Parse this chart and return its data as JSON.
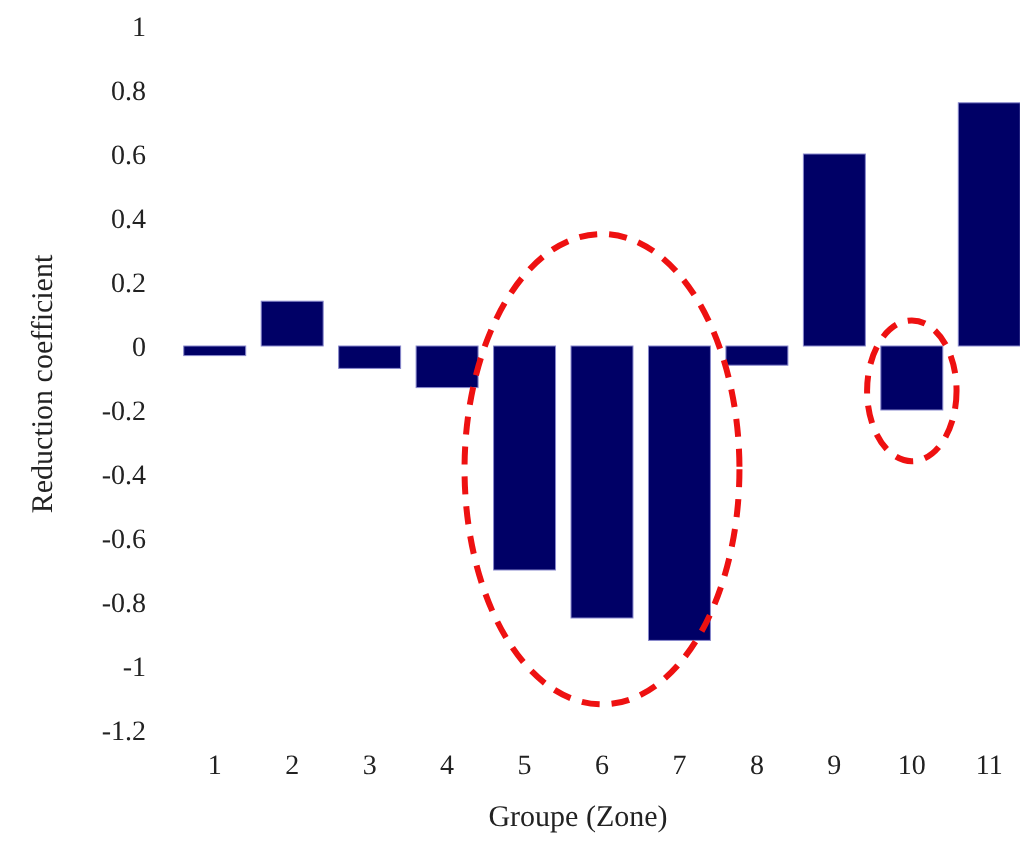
{
  "chart_data": {
    "type": "bar",
    "xlabel": "Groupe (Zone)",
    "ylabel": "Reduction coefficient",
    "categories": [
      "1",
      "2",
      "3",
      "4",
      "5",
      "6",
      "7",
      "8",
      "9",
      "10",
      "11"
    ],
    "values": [
      -0.03,
      0.14,
      -0.07,
      -0.13,
      -0.7,
      -0.85,
      -0.92,
      -0.06,
      0.6,
      -0.2,
      0.76
    ],
    "color": "#000066",
    "ylim": [
      -1.2,
      1
    ],
    "yticks": [
      -1.2,
      -1,
      -0.8,
      -0.6,
      -0.4,
      -0.2,
      0,
      0.2,
      0.4,
      0.6,
      0.8,
      1
    ],
    "grid": false
  }
}
